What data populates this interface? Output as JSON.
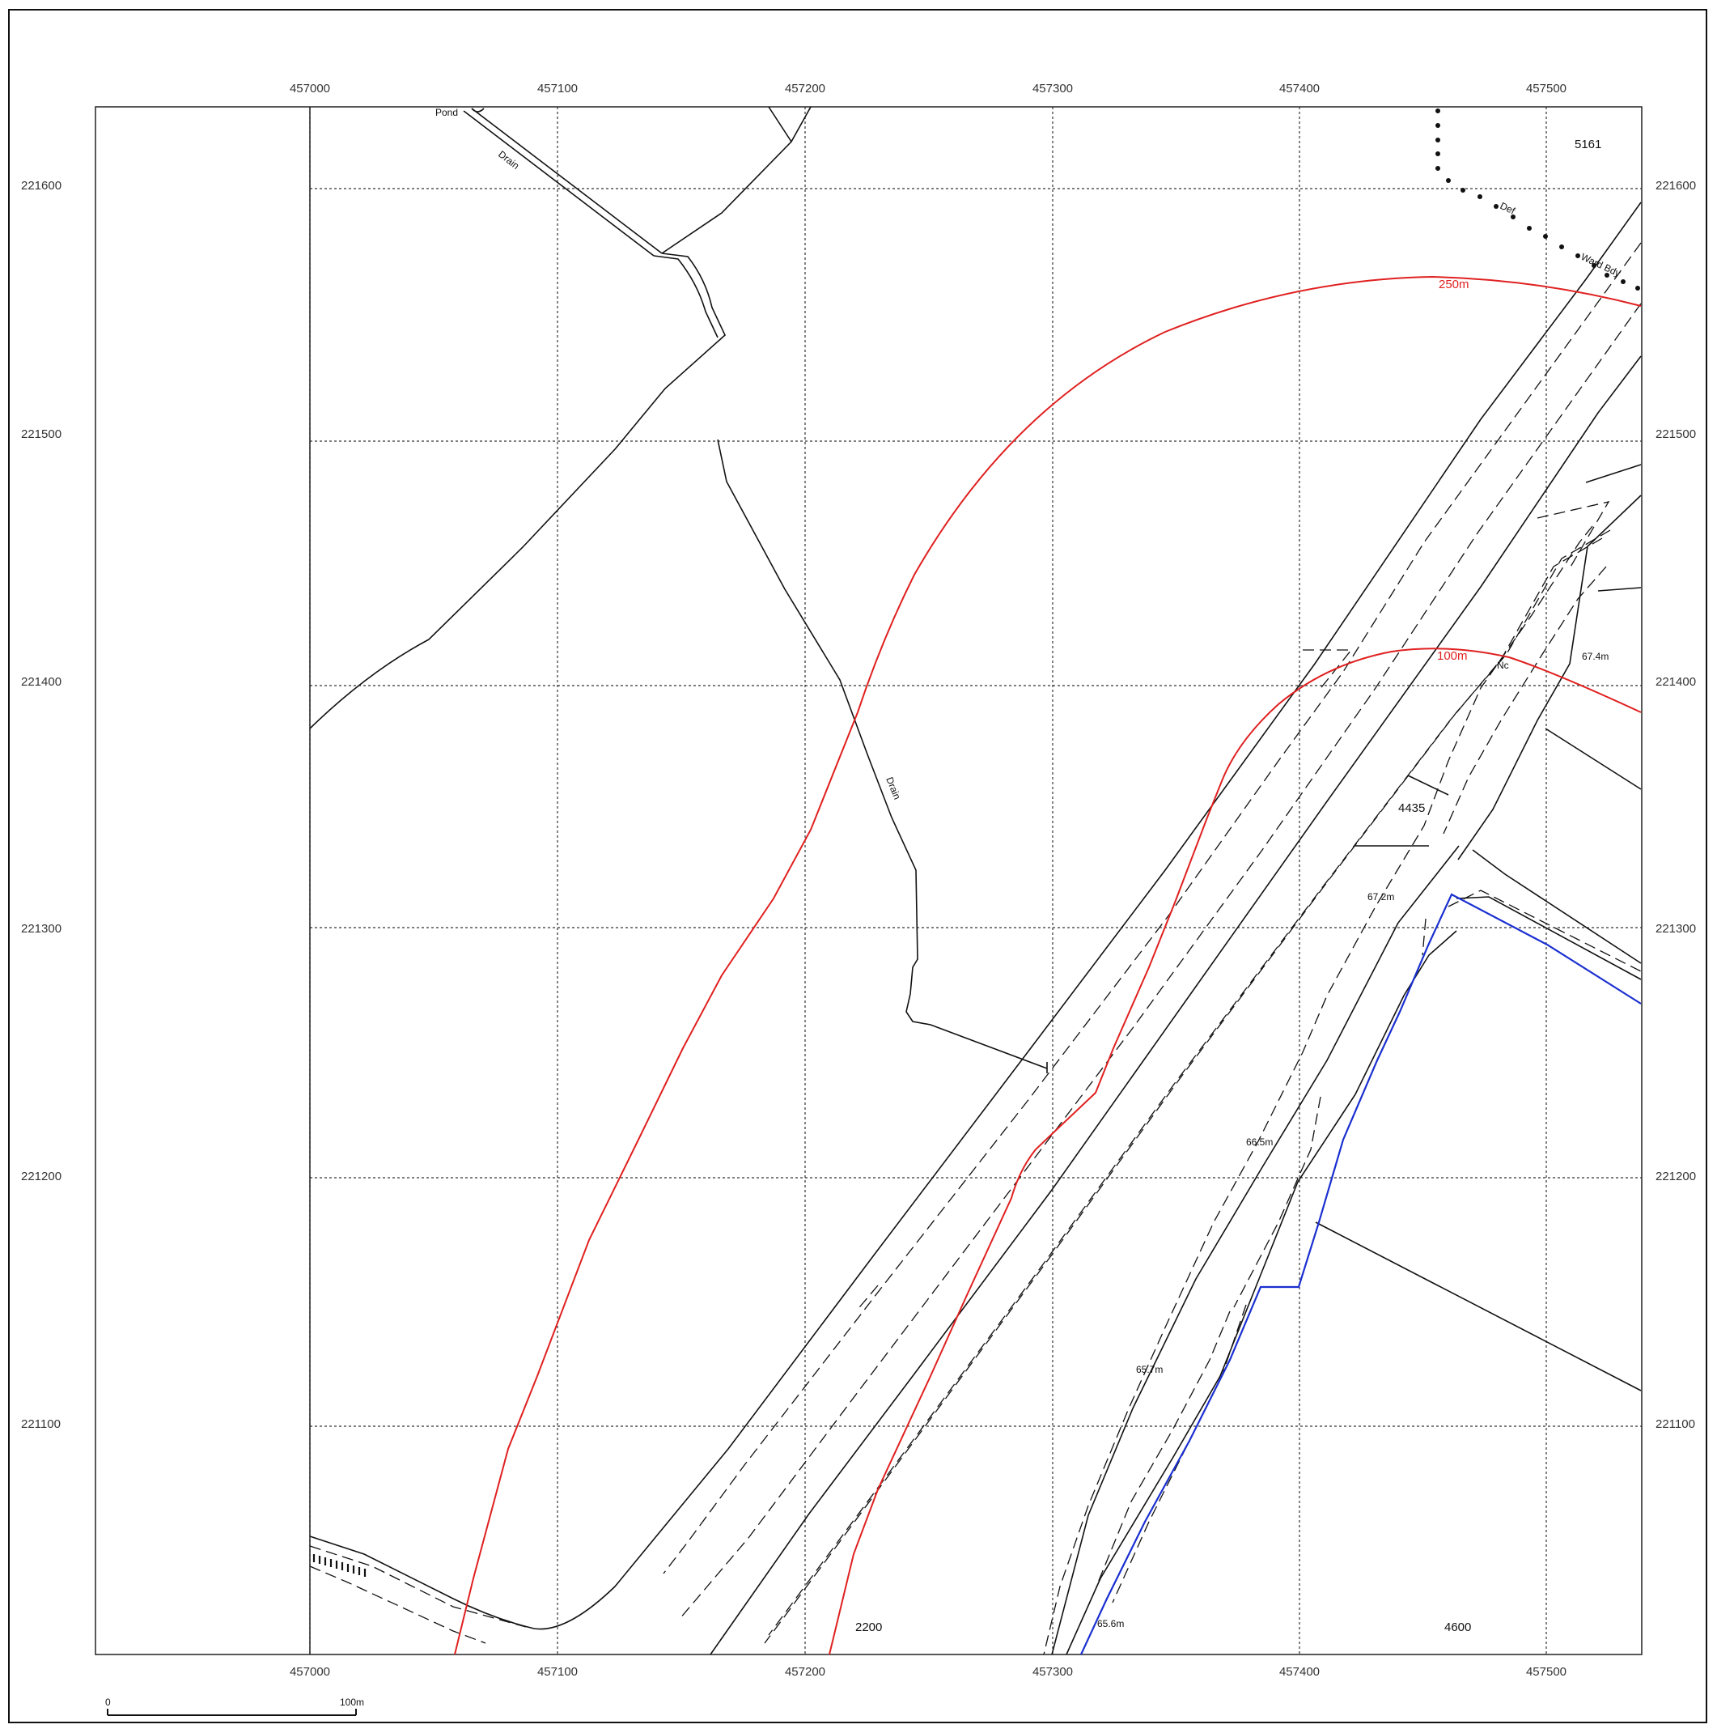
{
  "map": {
    "eastings": [
      "457000",
      "457100",
      "457200",
      "457300",
      "457400",
      "457500"
    ],
    "northings": [
      "221600",
      "221500",
      "221400",
      "221300",
      "221200",
      "221100"
    ],
    "labels": {
      "pond": "Pond",
      "drain_north": "Drain",
      "drain_mid": "Drain",
      "parcel_5161": "5161",
      "def": "Def",
      "ward_bdy": "Ward Bdy",
      "nc": "Nc",
      "parcel_4435": "4435",
      "parcel_2200": "2200",
      "parcel_4600": "4600",
      "height_674": "67.4m",
      "height_672": "67.2m",
      "height_665": "66.5m",
      "height_657": "65.7m",
      "height_656": "65.6m"
    },
    "buffers": {
      "outer_label": "250m",
      "inner_label": "100m",
      "color": "#e02020"
    },
    "site_boundary_color": "#1a2fd0",
    "line_color": "#111111"
  },
  "scale_bar": {
    "start_label": "0",
    "end_label": "100m"
  }
}
